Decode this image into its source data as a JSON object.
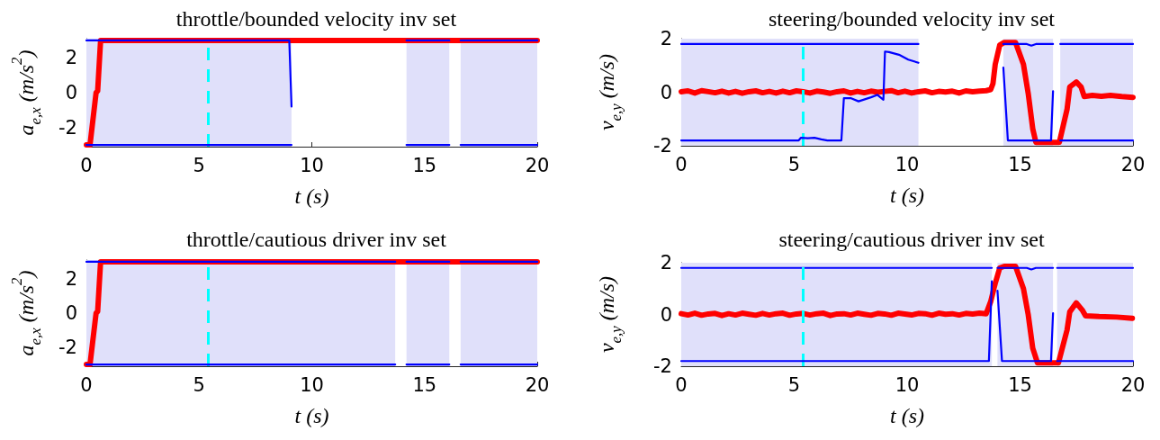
{
  "chart_data": [
    {
      "type": "line",
      "title": "throttle/bounded velocity inv set",
      "xlabel": "t (s)",
      "ylabel": "a$_{e,x}$ (m/s$^{2}$)",
      "xlim": [
        0,
        20
      ],
      "xticks": [
        0,
        5,
        10,
        15,
        20
      ],
      "ylim": [
        -3.1,
        3.1
      ],
      "yticks": [
        -2,
        0,
        2
      ],
      "series": [
        {
          "color": "#ff0000",
          "x": [
            0,
            0.16,
            0.43,
            0.5,
            0.63,
            20
          ],
          "values": [
            -3,
            -3,
            0,
            0.1,
            3,
            3
          ]
        },
        {
          "color": "#0000ff",
          "x": [
            0,
            9.0,
            9.1,
            9.5,
            14.2,
            16.1,
            16.3,
            16.6,
            20
          ],
          "values": [
            3,
            3,
            -0.8,
            null,
            3,
            3,
            null,
            3,
            3
          ]
        },
        {
          "color": "#0000ff",
          "x": [
            0,
            9.1,
            9.5,
            14.2,
            16.1,
            16.3,
            16.6,
            20
          ],
          "values": [
            -3,
            -3,
            null,
            -3,
            -3,
            null,
            -3,
            -3
          ]
        }
      ],
      "bands": [
        {
          "axis": "x",
          "from": 0,
          "to": 9.1,
          "color": "#e0e0fa"
        },
        {
          "axis": "x",
          "from": 14.2,
          "to": 16.1,
          "color": "#e0e0fa"
        },
        {
          "axis": "x",
          "from": 16.6,
          "to": 20,
          "color": "#e0e0fa"
        }
      ],
      "ref_lines": [
        {
          "axis": "x",
          "value": 5.4,
          "color": "#00ffff",
          "line_style": "dashed"
        }
      ]
    },
    {
      "type": "line",
      "title": "steering/bounded velocity inv set",
      "xlabel": "t (s)",
      "ylabel": "v$_{e,y}$ (m/s)",
      "xlim": [
        0,
        20
      ],
      "xticks": [
        0,
        5,
        10,
        15,
        20
      ],
      "ylim": [
        -2,
        2
      ],
      "yticks": [
        -2,
        0,
        2
      ],
      "series": [
        {
          "color": "#ff0000",
          "x": [
            0,
            0.3,
            0.6,
            0.9,
            1.2,
            1.5,
            1.8,
            2.1,
            2.4,
            2.7,
            3,
            3.3,
            3.6,
            3.9,
            4.2,
            4.5,
            4.8,
            5.1,
            5.4,
            5.7,
            6,
            6.3,
            6.6,
            6.9,
            7.2,
            7.5,
            7.8,
            8.1,
            8.4,
            8.7,
            9,
            9.3,
            9.6,
            9.9,
            10.2,
            10.5,
            10.8,
            11.1,
            11.4,
            11.7,
            12,
            12.3,
            12.6,
            12.9,
            13.2,
            13.5,
            13.7,
            13.8,
            13.9,
            14.1,
            14.3,
            14.8,
            15.15,
            15.36,
            15.56,
            15.7,
            16.74,
            17.08,
            17.2,
            17.49,
            17.7,
            17.84,
            18.2,
            18.6,
            19,
            19.5,
            20
          ],
          "values": [
            0.02,
            0.05,
            -0.03,
            0.06,
            0.02,
            -0.02,
            0.04,
            -0.03,
            0.03,
            -0.04,
            0.02,
            0.05,
            -0.02,
            0.03,
            -0.03,
            0.04,
            -0.02,
            0.05,
            0.02,
            -0.03,
            0.04,
            0.01,
            -0.04,
            0.02,
            0.05,
            -0.03,
            0.03,
            -0.02,
            0.04,
            0,
            0.03,
            0.06,
            -0.02,
            0.04,
            -0.03,
            0.02,
            0.05,
            -0.02,
            0.03,
            0.01,
            0.04,
            -0.03,
            0.05,
            0.02,
            0.04,
            0.06,
            0.1,
            0.32,
            1.04,
            1.76,
            1.86,
            1.86,
            1.04,
            -0.04,
            -1.36,
            -1.87,
            -1.87,
            -0.64,
            0.2,
            0.38,
            0.2,
            -0.16,
            -0.12,
            -0.15,
            -0.12,
            -0.16,
            -0.19
          ]
        },
        {
          "color": "#0000ff",
          "x": [
            0,
            10.5,
            12,
            14.26,
            15.3,
            15.5,
            15.7,
            16.46,
            16.6,
            16.78,
            20
          ],
          "values": [
            1.8,
            1.8,
            null,
            1.8,
            1.8,
            1.74,
            1.8,
            1.8,
            null,
            1.8,
            1.8
          ]
        },
        {
          "color": "#0000ff",
          "x": [
            0,
            5.2,
            5.3,
            5.6,
            5.9,
            6.2,
            6.47,
            7.09,
            7.2,
            7.5,
            7.85,
            8.4,
            8.68,
            8.95,
            9.02,
            9.2,
            9.64,
            10.05,
            10.5,
            12,
            14.26,
            14.46,
            16.37,
            16.46,
            16.6,
            16.78,
            20
          ],
          "values": [
            -1.8,
            -1.8,
            -1.7,
            -1.72,
            -1.7,
            -1.76,
            -1.8,
            -1.8,
            -0.22,
            -0.22,
            -0.34,
            -0.19,
            -0.1,
            -0.28,
            1.52,
            1.5,
            1.4,
            1.22,
            1.1,
            null,
            0.92,
            -1.8,
            -1.8,
            0.04,
            null,
            -1.8,
            -1.8
          ]
        }
      ],
      "bands": [
        {
          "axis": "x",
          "from": 0,
          "to": 10.5,
          "color": "#e0e0fa"
        },
        {
          "axis": "x",
          "from": 14.26,
          "to": 16.46,
          "color": "#e0e0fa"
        },
        {
          "axis": "x",
          "from": 16.78,
          "to": 20,
          "color": "#e0e0fa"
        }
      ],
      "ref_lines": [
        {
          "axis": "x",
          "value": 5.4,
          "color": "#00ffff",
          "line_style": "dashed"
        }
      ]
    },
    {
      "type": "line",
      "title": "throttle/cautious driver inv set",
      "xlabel": "t (s)",
      "ylabel": "a$_{e,x}$ (m/s$^{2}$)",
      "xlim": [
        0,
        20
      ],
      "xticks": [
        0,
        5,
        10,
        15,
        20
      ],
      "ylim": [
        -3.1,
        3.1
      ],
      "yticks": [
        -2,
        0,
        2
      ],
      "series": [
        {
          "color": "#ff0000",
          "x": [
            0,
            0.16,
            0.43,
            0.5,
            0.63,
            20
          ],
          "values": [
            -3,
            -3,
            0,
            0.1,
            3,
            3
          ]
        },
        {
          "color": "#0000ff",
          "x": [
            0,
            13.7,
            13.9,
            14.2,
            16.1,
            16.3,
            16.6,
            20
          ],
          "values": [
            3,
            3,
            null,
            3,
            3,
            null,
            3,
            3
          ]
        },
        {
          "color": "#0000ff",
          "x": [
            0,
            13.7,
            13.9,
            14.2,
            16.1,
            16.3,
            16.6,
            20
          ],
          "values": [
            -3,
            -3,
            null,
            -3,
            -3,
            null,
            -3,
            -3
          ]
        }
      ],
      "bands": [
        {
          "axis": "x",
          "from": 0,
          "to": 13.7,
          "color": "#e0e0fa"
        },
        {
          "axis": "x",
          "from": 14.2,
          "to": 16.1,
          "color": "#e0e0fa"
        },
        {
          "axis": "x",
          "from": 16.6,
          "to": 20,
          "color": "#e0e0fa"
        }
      ],
      "ref_lines": [
        {
          "axis": "x",
          "value": 5.4,
          "color": "#00ffff",
          "line_style": "dashed"
        }
      ]
    },
    {
      "type": "line",
      "title": "steering/cautious driver inv set",
      "xlabel": "t (s)",
      "ylabel": "v$_{e,y}$ (m/s)",
      "xlim": [
        0,
        20
      ],
      "xticks": [
        0,
        5,
        10,
        15,
        20
      ],
      "ylim": [
        -2,
        2
      ],
      "yticks": [
        -2,
        0,
        2
      ],
      "series": [
        {
          "color": "#ff0000",
          "x": [
            0,
            0.3,
            0.6,
            0.9,
            1.2,
            1.5,
            1.8,
            2.1,
            2.4,
            2.7,
            3,
            3.3,
            3.6,
            3.9,
            4.2,
            4.5,
            4.8,
            5.1,
            5.4,
            5.7,
            6,
            6.3,
            6.6,
            6.9,
            7.2,
            7.5,
            7.8,
            8.1,
            8.4,
            8.7,
            9,
            9.3,
            9.6,
            9.9,
            10.2,
            10.5,
            10.8,
            11.1,
            11.4,
            11.7,
            12,
            12.3,
            12.6,
            12.9,
            13.2,
            13.5,
            13.7,
            13.9,
            14.1,
            14.3,
            14.8,
            15.15,
            15.36,
            15.56,
            15.77,
            16.7,
            17.08,
            17.2,
            17.49,
            17.77,
            17.9,
            18.5,
            19.28,
            19.97
          ],
          "values": [
            0.03,
            -0.02,
            0.05,
            -0.03,
            0.02,
            0.04,
            -0.04,
            0.03,
            -0.02,
            0.05,
            0.01,
            -0.03,
            0.04,
            -0.02,
            0.03,
            0.05,
            -0.03,
            0.02,
            0.04,
            -0.02,
            0.03,
            0.05,
            -0.04,
            0.02,
            0.03,
            -0.02,
            0.05,
            0.01,
            -0.03,
            0.04,
            0.02,
            -0.03,
            0.05,
            0.02,
            -0.02,
            0.04,
            0.03,
            -0.03,
            0.05,
            0.01,
            0.03,
            -0.02,
            0.04,
            0.02,
            0.05,
            0.03,
            0.5,
            1.2,
            1.8,
            1.86,
            1.86,
            1,
            0,
            -1.3,
            -1.87,
            -1.87,
            -0.6,
            0.1,
            0.45,
            0.15,
            -0.05,
            -0.08,
            -0.1,
            -0.15
          ]
        },
        {
          "color": "#0000ff",
          "x": [
            0,
            13.75,
            13.9,
            14.0,
            15.3,
            15.5,
            15.7,
            16.46,
            16.55,
            16.64,
            20
          ],
          "values": [
            1.8,
            1.8,
            null,
            1.8,
            1.8,
            1.74,
            1.8,
            1.8,
            null,
            1.8,
            1.8
          ]
        },
        {
          "color": "#0000ff",
          "x": [
            0,
            13.62,
            13.75,
            13.9,
            14.0,
            14.2,
            16.37,
            16.46,
            16.55,
            16.64,
            20
          ],
          "values": [
            -1.8,
            -1.8,
            1.28,
            null,
            0.92,
            -1.8,
            -1.8,
            0.05,
            null,
            -1.8,
            -1.8
          ]
        }
      ],
      "bands": [
        {
          "axis": "x",
          "from": 0,
          "to": 13.75,
          "color": "#e0e0fa"
        },
        {
          "axis": "x",
          "from": 14.0,
          "to": 16.46,
          "color": "#e0e0fa"
        },
        {
          "axis": "x",
          "from": 16.64,
          "to": 20,
          "color": "#e0e0fa"
        }
      ],
      "ref_lines": [
        {
          "axis": "x",
          "value": 5.4,
          "color": "#00ffff",
          "line_style": "dashed"
        }
      ]
    }
  ]
}
